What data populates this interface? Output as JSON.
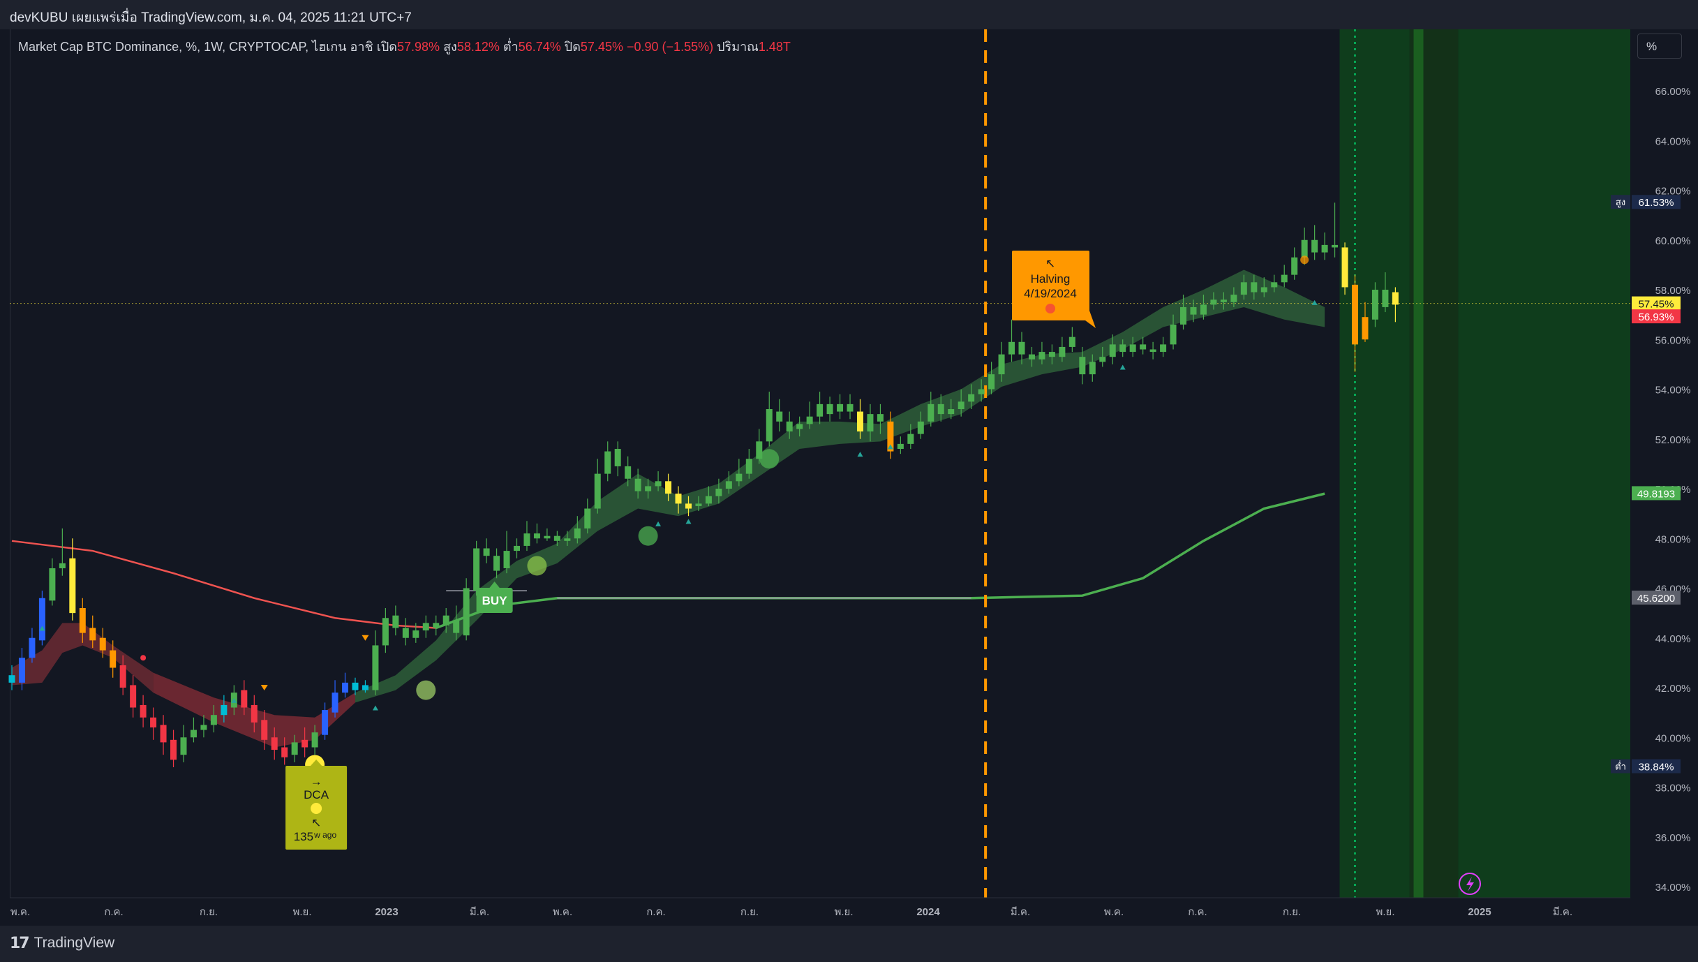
{
  "header": {
    "title": "devKUBU เผยแพร่เมื่อ TradingView.com, ม.ค. 04, 2025 11:21 UTC+7"
  },
  "legend": {
    "symbol": "Market Cap BTC Dominance, %, 1W, CRYPTOCAP, ไฮเกน อาชิ",
    "open_label": "เปิด",
    "open": "57.98%",
    "high_label": "สูง",
    "high": "58.12%",
    "low_label": "ต่ำ",
    "low": "56.74%",
    "close_label": "ปิด",
    "close": "57.45%",
    "change": "−0.90 (−1.55%)",
    "volume_label": "ปริมาณ",
    "volume": "1.48T"
  },
  "scale_button": "%",
  "footer": {
    "brand": "TradingView"
  },
  "colors": {
    "background": "#131722",
    "bull": "#4caf50",
    "bear": "#f23645",
    "orange": "#ff9800",
    "yellow": "#ffeb3b"
  },
  "chart_data": {
    "type": "candlestick",
    "y_axis": {
      "ticks": [
        "66.00%",
        "64.00%",
        "62.00%",
        "60.00%",
        "58.00%",
        "56.00%",
        "54.00%",
        "52.00%",
        "50.00%",
        "48.00%",
        "46.00%",
        "44.00%",
        "42.00%",
        "40.00%",
        "38.00%",
        "36.00%",
        "34.00%"
      ],
      "range": [
        33.6,
        67.8
      ]
    },
    "x_axis": {
      "ticks": [
        "พ.ค.",
        "ก.ค.",
        "ก.ย.",
        "พ.ย.",
        "2023",
        "มี.ค.",
        "พ.ค.",
        "ก.ค.",
        "ก.ย.",
        "พ.ย.",
        "2024",
        "มี.ค.",
        "พ.ค.",
        "ก.ค.",
        "ก.ย.",
        "พ.ย.",
        "2025",
        "มี.ค."
      ]
    },
    "price_labels": [
      {
        "prefix": "สูง",
        "text": "61.53%",
        "value": 61.53,
        "bg": "#1c2a4a",
        "fg": "#ffffff"
      },
      {
        "prefix": "",
        "text": "57.45%",
        "value": 57.45,
        "bg": "#ffeb3b",
        "fg": "#131722"
      },
      {
        "prefix": "",
        "text": "56.93%",
        "value": 56.93,
        "bg": "#f23645",
        "fg": "#ffffff"
      },
      {
        "prefix": "",
        "text": "49.8193",
        "value": 49.8193,
        "bg": "#4caf50",
        "fg": "#ffffff"
      },
      {
        "prefix": "",
        "text": "45.6200",
        "value": 45.62,
        "bg": "#5d606b",
        "fg": "#ffffff"
      },
      {
        "prefix": "ต่ำ",
        "text": "38.84%",
        "value": 38.84,
        "bg": "#1c2a4a",
        "fg": "#ffffff"
      }
    ],
    "last_price": 57.45,
    "candles": [
      [
        42.5,
        42.2,
        42.9,
        41.9,
        "#00bcd4"
      ],
      [
        42.2,
        43.2,
        43.6,
        41.9,
        "#2962ff"
      ],
      [
        43.2,
        44.0,
        44.4,
        43.0,
        "#2962ff"
      ],
      [
        43.9,
        45.6,
        45.9,
        43.7,
        "#2962ff"
      ],
      [
        45.5,
        46.8,
        47.2,
        45.3,
        "#4caf50"
      ],
      [
        46.8,
        47.0,
        48.4,
        46.5,
        "#4caf50"
      ],
      [
        47.2,
        45.0,
        48.0,
        44.7,
        "#ffeb3b"
      ],
      [
        45.2,
        44.2,
        45.6,
        43.8,
        "#ff9800"
      ],
      [
        44.4,
        43.9,
        44.9,
        43.6,
        "#ff9800"
      ],
      [
        44.0,
        43.5,
        44.4,
        43.2,
        "#ff9800"
      ],
      [
        43.5,
        42.8,
        43.9,
        42.4,
        "#ff9800"
      ],
      [
        42.9,
        42.0,
        43.3,
        41.7,
        "#f23645"
      ],
      [
        42.1,
        41.2,
        42.5,
        40.8,
        "#f23645"
      ],
      [
        41.3,
        40.8,
        41.7,
        40.4,
        "#f23645"
      ],
      [
        40.8,
        40.4,
        41.2,
        39.9,
        "#f23645"
      ],
      [
        40.5,
        39.8,
        40.9,
        39.3,
        "#f23645"
      ],
      [
        39.9,
        39.1,
        40.3,
        38.8,
        "#f23645"
      ],
      [
        39.3,
        40.0,
        40.5,
        39.0,
        "#4caf50"
      ],
      [
        40.0,
        40.3,
        40.8,
        39.8,
        "#4caf50"
      ],
      [
        40.3,
        40.5,
        40.9,
        40.0,
        "#4caf50"
      ],
      [
        40.5,
        40.9,
        41.3,
        40.2,
        "#4caf50"
      ],
      [
        40.9,
        41.3,
        41.7,
        40.6,
        "#00bcd4"
      ],
      [
        41.2,
        41.8,
        42.1,
        40.9,
        "#4caf50"
      ],
      [
        41.9,
        41.2,
        42.3,
        40.9,
        "#f23645"
      ],
      [
        41.3,
        40.6,
        41.7,
        40.2,
        "#f23645"
      ],
      [
        40.7,
        39.9,
        41.1,
        39.5,
        "#f23645"
      ],
      [
        40.0,
        39.5,
        40.4,
        39.1,
        "#f23645"
      ],
      [
        39.6,
        39.2,
        40.0,
        38.9,
        "#f23645"
      ],
      [
        39.3,
        39.8,
        40.1,
        39.0,
        "#4caf50"
      ],
      [
        39.9,
        39.6,
        40.4,
        39.2,
        "#f23645"
      ],
      [
        39.6,
        40.2,
        40.5,
        39.3,
        "#4caf50"
      ],
      [
        40.1,
        41.1,
        41.4,
        39.9,
        "#2962ff"
      ],
      [
        41.0,
        41.8,
        42.3,
        40.8,
        "#2962ff"
      ],
      [
        41.8,
        42.2,
        42.6,
        41.6,
        "#2962ff"
      ],
      [
        42.2,
        41.9,
        42.4,
        41.7,
        "#00bcd4"
      ],
      [
        41.9,
        42.1,
        42.3,
        41.8,
        "#00bcd4"
      ],
      [
        41.9,
        43.7,
        44.3,
        41.7,
        "#4caf50"
      ],
      [
        43.7,
        44.8,
        45.2,
        43.4,
        "#4caf50"
      ],
      [
        44.9,
        44.4,
        45.3,
        44.1,
        "#4caf50"
      ],
      [
        44.4,
        44.0,
        44.8,
        43.7,
        "#4caf50"
      ],
      [
        44.0,
        44.3,
        44.6,
        43.8,
        "#4caf50"
      ],
      [
        44.3,
        44.6,
        44.9,
        44.0,
        "#4caf50"
      ],
      [
        44.6,
        44.4,
        44.9,
        44.1,
        "#4caf50"
      ],
      [
        44.5,
        44.9,
        45.2,
        44.2,
        "#4caf50"
      ],
      [
        44.7,
        44.2,
        45.3,
        43.9,
        "#4caf50"
      ],
      [
        44.1,
        46.0,
        46.4,
        43.9,
        "#4caf50"
      ],
      [
        45.9,
        47.6,
        47.9,
        45.7,
        "#4caf50"
      ],
      [
        47.6,
        47.3,
        48.0,
        47.0,
        "#4caf50"
      ],
      [
        47.3,
        46.7,
        47.6,
        46.4,
        "#4caf50"
      ],
      [
        46.8,
        47.5,
        48.3,
        46.6,
        "#4caf50"
      ],
      [
        47.5,
        47.7,
        48.0,
        47.2,
        "#4caf50"
      ],
      [
        47.7,
        48.2,
        48.7,
        47.5,
        "#4caf50"
      ],
      [
        48.2,
        48.0,
        48.6,
        47.8,
        "#4caf50"
      ],
      [
        48.0,
        48.1,
        48.4,
        47.9,
        "#4caf50"
      ],
      [
        48.1,
        47.9,
        48.3,
        47.7,
        "#4caf50"
      ],
      [
        47.9,
        48.0,
        48.3,
        47.7,
        "#4caf50"
      ],
      [
        48.0,
        48.4,
        48.9,
        47.8,
        "#4caf50"
      ],
      [
        48.4,
        49.2,
        49.6,
        48.2,
        "#4caf50"
      ],
      [
        49.2,
        50.6,
        51.2,
        49.0,
        "#4caf50"
      ],
      [
        50.6,
        51.5,
        51.9,
        50.3,
        "#4caf50"
      ],
      [
        51.6,
        50.9,
        51.9,
        50.5,
        "#4caf50"
      ],
      [
        50.9,
        50.4,
        51.3,
        50.1,
        "#4caf50"
      ],
      [
        50.4,
        49.9,
        50.8,
        49.6,
        "#4caf50"
      ],
      [
        49.9,
        50.1,
        50.4,
        49.6,
        "#4caf50"
      ],
      [
        50.1,
        50.3,
        50.7,
        49.9,
        "#4caf50"
      ],
      [
        50.3,
        49.8,
        50.6,
        49.5,
        "#ffeb3b"
      ],
      [
        49.8,
        49.4,
        50.1,
        49.0,
        "#ffeb3b"
      ],
      [
        49.4,
        49.2,
        49.7,
        48.9,
        "#ffeb3b"
      ],
      [
        49.3,
        49.4,
        49.7,
        49.1,
        "#4caf50"
      ],
      [
        49.4,
        49.7,
        50.1,
        49.3,
        "#4caf50"
      ],
      [
        49.7,
        50.0,
        50.4,
        49.4,
        "#4caf50"
      ],
      [
        50.0,
        50.3,
        50.7,
        49.8,
        "#4caf50"
      ],
      [
        50.3,
        50.6,
        51.2,
        50.1,
        "#4caf50"
      ],
      [
        50.6,
        51.2,
        51.6,
        50.4,
        "#4caf50"
      ],
      [
        51.2,
        51.9,
        52.4,
        51.0,
        "#4caf50"
      ],
      [
        51.9,
        53.2,
        53.9,
        51.7,
        "#4caf50"
      ],
      [
        53.1,
        52.7,
        53.6,
        52.3,
        "#4caf50"
      ],
      [
        52.7,
        52.3,
        53.1,
        52.0,
        "#4caf50"
      ],
      [
        52.4,
        52.6,
        52.9,
        52.1,
        "#4caf50"
      ],
      [
        52.6,
        52.9,
        53.5,
        52.4,
        "#4caf50"
      ],
      [
        52.9,
        53.4,
        53.9,
        52.6,
        "#4caf50"
      ],
      [
        53.4,
        53.0,
        53.7,
        52.7,
        "#4caf50"
      ],
      [
        53.1,
        53.4,
        53.8,
        52.8,
        "#4caf50"
      ],
      [
        53.4,
        53.1,
        53.8,
        52.8,
        "#4caf50"
      ],
      [
        53.1,
        52.3,
        53.6,
        52.0,
        "#ffeb3b"
      ],
      [
        52.3,
        53.0,
        53.4,
        51.9,
        "#4caf50"
      ],
      [
        53.0,
        52.7,
        53.4,
        52.2,
        "#4caf50"
      ],
      [
        52.7,
        51.5,
        53.1,
        51.2,
        "#ff9800"
      ],
      [
        51.6,
        51.8,
        52.1,
        51.4,
        "#4caf50"
      ],
      [
        51.8,
        52.2,
        52.6,
        51.6,
        "#4caf50"
      ],
      [
        52.2,
        52.7,
        53.1,
        52.0,
        "#4caf50"
      ],
      [
        52.7,
        53.4,
        53.9,
        52.5,
        "#4caf50"
      ],
      [
        53.4,
        53.0,
        53.8,
        52.7,
        "#4caf50"
      ],
      [
        53.0,
        53.2,
        53.6,
        52.8,
        "#4caf50"
      ],
      [
        53.2,
        53.5,
        54.0,
        52.9,
        "#4caf50"
      ],
      [
        53.5,
        53.8,
        54.2,
        53.2,
        "#4caf50"
      ],
      [
        53.8,
        54.0,
        54.4,
        53.5,
        "#4caf50"
      ],
      [
        54.0,
        54.6,
        55.1,
        53.8,
        "#4caf50"
      ],
      [
        54.6,
        55.4,
        55.9,
        54.3,
        "#4caf50"
      ],
      [
        55.4,
        55.9,
        56.8,
        55.1,
        "#4caf50"
      ],
      [
        55.9,
        55.4,
        56.3,
        55.0,
        "#4caf50"
      ],
      [
        55.4,
        55.2,
        55.7,
        54.9,
        "#4caf50"
      ],
      [
        55.2,
        55.5,
        55.9,
        55.0,
        "#4caf50"
      ],
      [
        55.5,
        55.3,
        55.8,
        55.0,
        "#4caf50"
      ],
      [
        55.3,
        55.7,
        56.1,
        55.1,
        "#4caf50"
      ],
      [
        55.7,
        56.1,
        56.5,
        55.5,
        "#4caf50"
      ],
      [
        55.3,
        54.6,
        55.7,
        54.2,
        "#4caf50"
      ],
      [
        54.6,
        55.1,
        55.4,
        54.3,
        "#4caf50"
      ],
      [
        55.1,
        55.3,
        55.7,
        54.9,
        "#4caf50"
      ],
      [
        55.3,
        55.8,
        56.2,
        55.0,
        "#4caf50"
      ],
      [
        55.8,
        55.5,
        56.0,
        55.3,
        "#4caf50"
      ],
      [
        55.5,
        55.8,
        56.1,
        55.3,
        "#4caf50"
      ],
      [
        55.8,
        55.6,
        56.1,
        55.4,
        "#4caf50"
      ],
      [
        55.6,
        55.5,
        55.9,
        55.2,
        "#4caf50"
      ],
      [
        55.5,
        55.8,
        56.1,
        55.3,
        "#4caf50"
      ],
      [
        55.8,
        56.6,
        57.0,
        55.6,
        "#4caf50"
      ],
      [
        56.6,
        57.3,
        57.8,
        56.4,
        "#4caf50"
      ],
      [
        57.3,
        57.0,
        57.6,
        56.7,
        "#4caf50"
      ],
      [
        57.0,
        57.4,
        57.8,
        56.8,
        "#4caf50"
      ],
      [
        57.4,
        57.6,
        57.9,
        57.2,
        "#4caf50"
      ],
      [
        57.6,
        57.5,
        57.9,
        57.2,
        "#4caf50"
      ],
      [
        57.5,
        57.8,
        58.1,
        57.3,
        "#4caf50"
      ],
      [
        57.8,
        58.3,
        58.6,
        57.6,
        "#4caf50"
      ],
      [
        58.3,
        57.9,
        58.6,
        57.6,
        "#4caf50"
      ],
      [
        57.9,
        58.1,
        58.5,
        57.7,
        "#4caf50"
      ],
      [
        58.1,
        58.3,
        58.6,
        57.9,
        "#4caf50"
      ],
      [
        58.3,
        58.6,
        59.0,
        58.1,
        "#4caf50"
      ],
      [
        58.6,
        59.3,
        59.7,
        58.4,
        "#4caf50"
      ],
      [
        59.3,
        60.0,
        60.5,
        59.0,
        "#4caf50"
      ],
      [
        60.0,
        59.5,
        60.6,
        59.2,
        "#4caf50"
      ],
      [
        59.5,
        59.8,
        60.3,
        59.2,
        "#4caf50"
      ],
      [
        59.8,
        59.7,
        61.5,
        59.3,
        "#4caf50"
      ],
      [
        59.7,
        58.1,
        59.9,
        57.8,
        "#ffeb3b"
      ],
      [
        58.2,
        55.8,
        58.6,
        54.7,
        "#ff9800"
      ],
      [
        56.0,
        56.9,
        57.5,
        55.9,
        "#ff9800"
      ],
      [
        56.8,
        58.0,
        58.3,
        56.5,
        "#4caf50"
      ],
      [
        58.0,
        57.3,
        58.7,
        57.1,
        "#4caf50"
      ],
      [
        57.9,
        57.4,
        58.1,
        56.7,
        "#ffeb3b"
      ]
    ],
    "moving_average_red": [
      [
        0,
        47.9
      ],
      [
        8,
        47.5
      ],
      [
        16,
        46.6
      ],
      [
        24,
        45.6
      ],
      [
        32,
        44.8
      ],
      [
        38,
        44.5
      ],
      [
        42,
        44.4
      ]
    ],
    "moving_average_green": [
      [
        42,
        44.4
      ],
      [
        48,
        45.3
      ],
      [
        54,
        45.6
      ],
      [
        95,
        45.6
      ],
      [
        106,
        45.7
      ],
      [
        112,
        46.4
      ],
      [
        118,
        47.9
      ],
      [
        124,
        49.2
      ],
      [
        130,
        49.8
      ]
    ],
    "cloud_upper": [
      [
        0,
        42.8
      ],
      [
        3,
        43.5
      ],
      [
        5,
        44.6
      ],
      [
        7,
        44.6
      ],
      [
        10,
        43.7
      ],
      [
        14,
        42.6
      ],
      [
        20,
        41.6
      ],
      [
        26,
        40.9
      ],
      [
        30,
        40.8
      ],
      [
        34,
        41.8
      ],
      [
        38,
        42.5
      ],
      [
        42,
        43.9
      ],
      [
        46,
        45.9
      ],
      [
        50,
        47.1
      ],
      [
        54,
        47.8
      ],
      [
        58,
        49.5
      ],
      [
        62,
        50.6
      ],
      [
        66,
        49.7
      ],
      [
        70,
        50.2
      ],
      [
        74,
        51.4
      ],
      [
        78,
        52.7
      ],
      [
        82,
        52.7
      ],
      [
        86,
        52.6
      ],
      [
        90,
        53.4
      ],
      [
        94,
        54.0
      ],
      [
        98,
        55.0
      ],
      [
        102,
        55.4
      ],
      [
        106,
        55.5
      ],
      [
        110,
        56.3
      ],
      [
        114,
        57.3
      ],
      [
        118,
        58.0
      ],
      [
        122,
        58.8
      ],
      [
        126,
        58.1
      ],
      [
        130,
        57.3
      ]
    ],
    "cloud_lower": [
      [
        0,
        42.1
      ],
      [
        3,
        42.2
      ],
      [
        5,
        43.4
      ],
      [
        7,
        43.7
      ],
      [
        10,
        43.2
      ],
      [
        14,
        41.8
      ],
      [
        20,
        40.6
      ],
      [
        26,
        39.6
      ],
      [
        30,
        39.9
      ],
      [
        34,
        41.4
      ],
      [
        38,
        41.9
      ],
      [
        42,
        43.1
      ],
      [
        46,
        44.7
      ],
      [
        50,
        46.4
      ],
      [
        54,
        47.0
      ],
      [
        58,
        48.3
      ],
      [
        62,
        49.2
      ],
      [
        66,
        48.9
      ],
      [
        70,
        49.4
      ],
      [
        74,
        50.5
      ],
      [
        78,
        51.6
      ],
      [
        82,
        51.8
      ],
      [
        86,
        51.9
      ],
      [
        90,
        52.5
      ],
      [
        94,
        53.0
      ],
      [
        98,
        54.1
      ],
      [
        102,
        54.6
      ],
      [
        106,
        54.9
      ],
      [
        110,
        55.6
      ],
      [
        114,
        56.5
      ],
      [
        118,
        56.9
      ],
      [
        122,
        57.3
      ],
      [
        126,
        56.8
      ],
      [
        130,
        56.5
      ]
    ],
    "buy_level_line": [
      [
        43,
        45.9
      ],
      [
        51,
        45.9
      ]
    ],
    "annotations": {
      "halving_label": "Halving",
      "halving_date": "4/19/2024",
      "halving_arrow": "↖",
      "halving_index": 96,
      "buy_label": "BUY",
      "buy_index": 46,
      "dca_label": "DCA",
      "dca_arrow_top": "→",
      "dca_arrow_bottom": "↖",
      "dca_count": "135",
      "dca_suffix": "w ago",
      "dca_index": 30
    },
    "signal_dots": [
      [
        30,
        38.9,
        "#ffeb3b",
        14
      ],
      [
        41,
        41.9,
        "#9ccc65",
        14
      ],
      [
        52,
        46.9,
        "#8bc34a",
        14
      ],
      [
        63,
        48.1,
        "#4caf50",
        14
      ],
      [
        75,
        51.2,
        "#4caf50",
        14
      ],
      [
        128,
        59.2,
        "#ff9800",
        6
      ]
    ],
    "future_zone": {
      "dotted_index": 133
    }
  }
}
